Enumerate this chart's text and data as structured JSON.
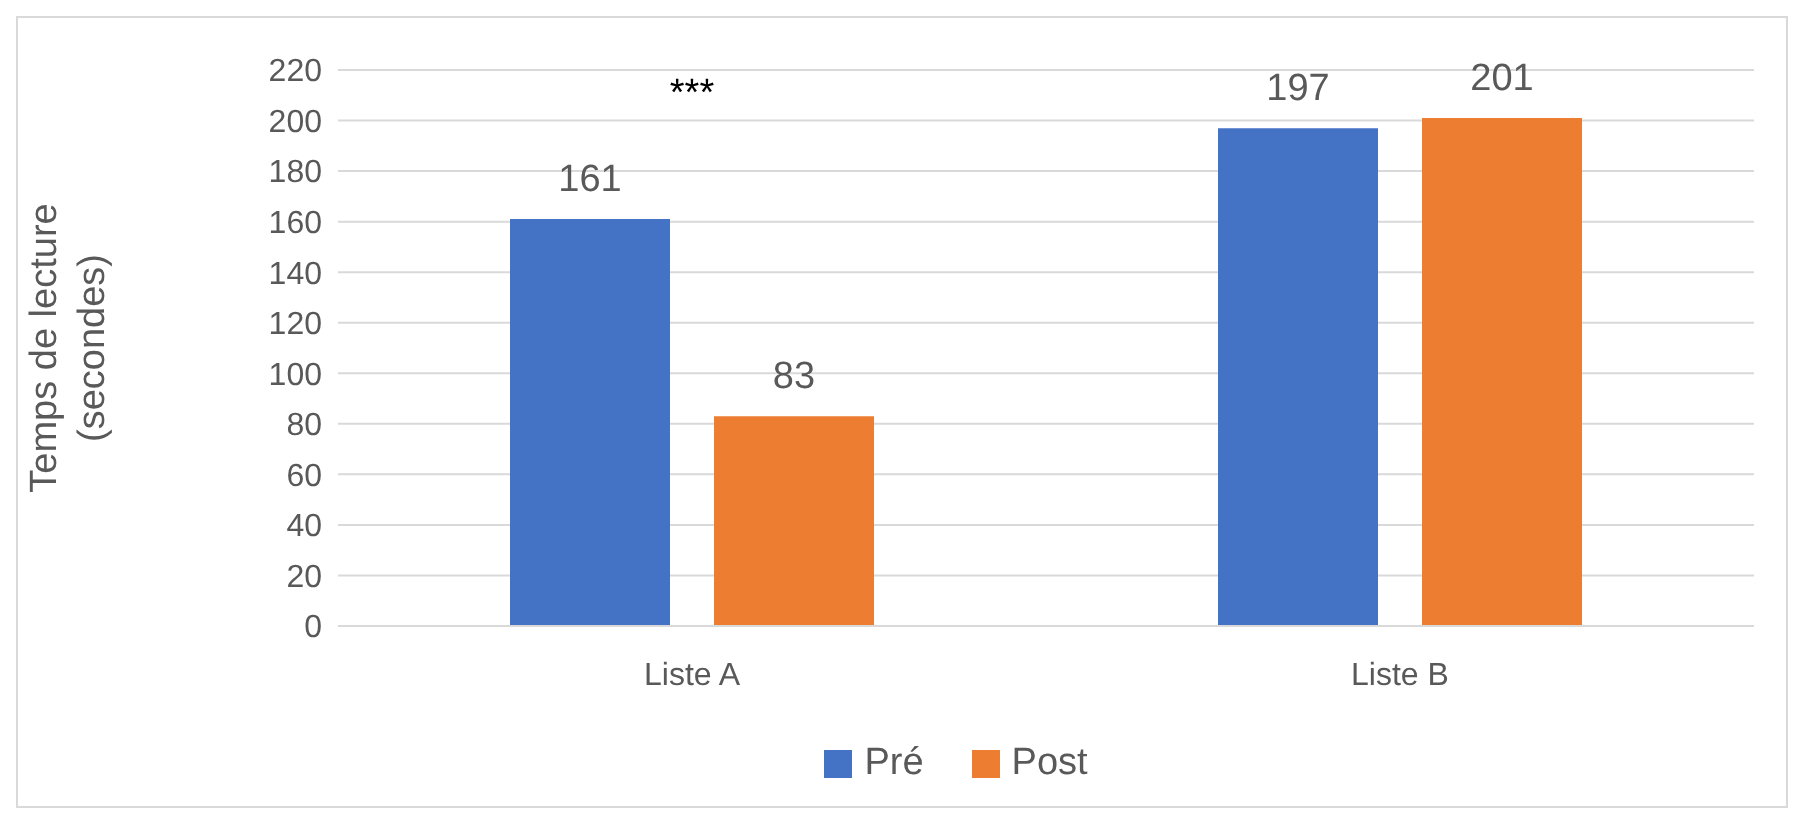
{
  "chart_data": {
    "type": "bar",
    "ylabel": "Temps de lecture (secondes)",
    "categories": [
      "Liste A",
      "Liste B"
    ],
    "series": [
      {
        "name": "Pré",
        "color": "#4472c4",
        "values": [
          161,
          197
        ]
      },
      {
        "name": "Post",
        "color": "#ed7d31",
        "values": [
          83,
          201
        ]
      }
    ],
    "ylim": [
      0,
      220
    ],
    "yticks": [
      0,
      20,
      40,
      60,
      80,
      100,
      120,
      140,
      160,
      180,
      200,
      220
    ],
    "grid": "y",
    "legend": "bottom",
    "data_labels": true,
    "annotations": [
      "***"
    ]
  }
}
